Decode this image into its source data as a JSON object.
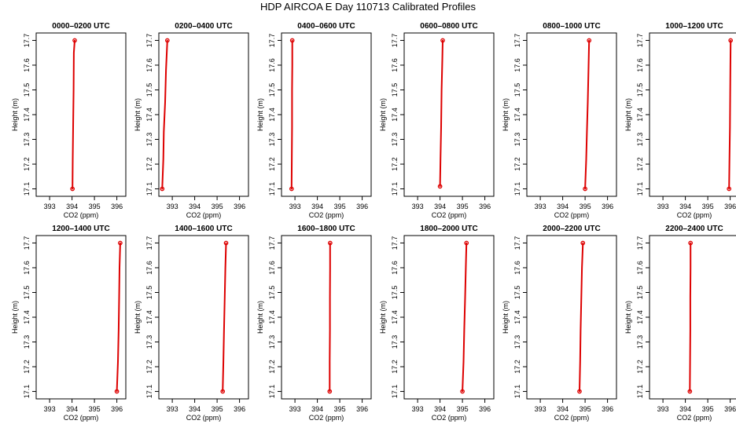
{
  "title": "HDP AIRCOA E  Day 110713  Calibrated Profiles",
  "colors": {
    "profile": "#dd0000",
    "axes": "#000000",
    "background": "#ffffff"
  },
  "chart_data": {
    "type": "line",
    "layout": "2 rows x 6 panels",
    "xlabel": "CO2 (ppm)",
    "ylabel": "Height (m)",
    "xlim": [
      392.4,
      396.4
    ],
    "ylim": [
      17.07,
      17.73
    ],
    "xticks": [
      393,
      394,
      395,
      396
    ],
    "yticks": [
      17.1,
      17.2,
      17.3,
      17.4,
      17.5,
      17.6,
      17.7
    ],
    "grid": false,
    "legend": "none",
    "panels": [
      {
        "title": "0000–0200 UTC",
        "x": [
          394.02,
          394.03,
          394.05,
          394.07,
          394.08,
          394.12
        ],
        "y": [
          17.1,
          17.22,
          17.35,
          17.5,
          17.65,
          17.7
        ]
      },
      {
        "title": "0200–0400 UTC",
        "x": [
          392.55,
          392.6,
          392.62,
          392.68,
          392.72,
          392.78
        ],
        "y": [
          17.1,
          17.22,
          17.33,
          17.45,
          17.58,
          17.7
        ]
      },
      {
        "title": "0400–0600 UTC",
        "x": [
          392.85,
          392.86,
          392.87,
          392.87,
          392.88,
          392.88
        ],
        "y": [
          17.1,
          17.22,
          17.35,
          17.5,
          17.6,
          17.7
        ]
      },
      {
        "title": "0600–0800 UTC",
        "x": [
          394.0,
          394.02,
          394.05,
          394.07,
          394.1,
          394.12
        ],
        "y": [
          17.11,
          17.22,
          17.35,
          17.5,
          17.62,
          17.7
        ]
      },
      {
        "title": "0800–1000 UTC",
        "x": [
          395.0,
          395.05,
          395.08,
          395.12,
          395.15,
          395.18
        ],
        "y": [
          17.1,
          17.22,
          17.33,
          17.45,
          17.58,
          17.7
        ]
      },
      {
        "title": "1000–1200 UTC",
        "x": [
          395.95,
          395.97,
          395.99,
          396.0,
          396.01,
          396.02
        ],
        "y": [
          17.1,
          17.22,
          17.35,
          17.48,
          17.6,
          17.7
        ]
      },
      {
        "title": "1200–1400 UTC",
        "x": [
          396.0,
          396.05,
          396.08,
          396.1,
          396.12,
          396.15
        ],
        "y": [
          17.1,
          17.22,
          17.35,
          17.48,
          17.6,
          17.7
        ]
      },
      {
        "title": "1400–1600 UTC",
        "x": [
          395.25,
          395.28,
          395.31,
          395.34,
          395.37,
          395.4
        ],
        "y": [
          17.1,
          17.22,
          17.35,
          17.48,
          17.6,
          17.7
        ]
      },
      {
        "title": "1600–1800 UTC",
        "x": [
          394.55,
          394.55,
          394.56,
          394.56,
          394.57,
          394.57
        ],
        "y": [
          17.1,
          17.22,
          17.35,
          17.48,
          17.6,
          17.7
        ]
      },
      {
        "title": "1800–2000 UTC",
        "x": [
          395.0,
          395.05,
          395.08,
          395.12,
          395.15,
          395.18
        ],
        "y": [
          17.1,
          17.22,
          17.35,
          17.48,
          17.6,
          17.7
        ]
      },
      {
        "title": "2000–2200 UTC",
        "x": [
          394.75,
          394.78,
          394.8,
          394.83,
          394.86,
          394.9
        ],
        "y": [
          17.1,
          17.22,
          17.35,
          17.48,
          17.6,
          17.7
        ]
      },
      {
        "title": "2200–2400 UTC",
        "x": [
          394.2,
          394.21,
          394.22,
          394.22,
          394.23,
          394.23
        ],
        "y": [
          17.1,
          17.22,
          17.35,
          17.48,
          17.6,
          17.7
        ]
      }
    ]
  }
}
